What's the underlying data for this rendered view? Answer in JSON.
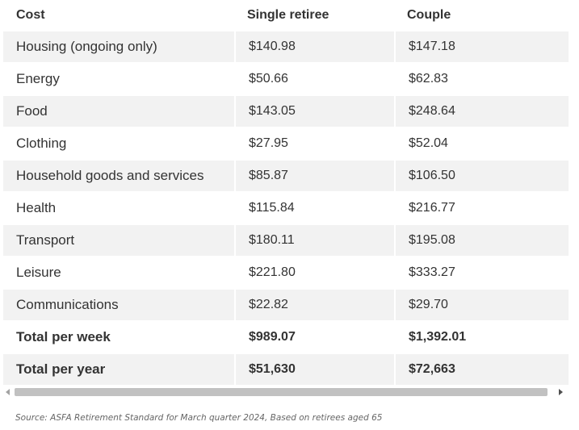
{
  "table": {
    "headers": [
      "Cost",
      "Single retiree",
      "Couple"
    ],
    "rows": [
      {
        "label": "Housing (ongoing only)",
        "single": "$140.98",
        "couple": "$147.18"
      },
      {
        "label": "Energy",
        "single": "$50.66",
        "couple": "$62.83"
      },
      {
        "label": "Food",
        "single": "$143.05",
        "couple": "$248.64"
      },
      {
        "label": "Clothing",
        "single": "$27.95",
        "couple": "$52.04"
      },
      {
        "label": "Household goods and services",
        "single": "$85.87",
        "couple": "$106.50"
      },
      {
        "label": "Health",
        "single": "$115.84",
        "couple": "$216.77"
      },
      {
        "label": "Transport",
        "single": "$180.11",
        "couple": "$195.08"
      },
      {
        "label": "Leisure",
        "single": "$221.80",
        "couple": "$333.27"
      },
      {
        "label": "Communications",
        "single": "$22.82",
        "couple": "$29.70"
      },
      {
        "label": "Total per week",
        "single": "$989.07",
        "couple": "$1,392.01"
      },
      {
        "label": "Total per year",
        "single": "$51,630",
        "couple": "$72,663"
      }
    ]
  },
  "source_note": "Source: ASFA Retirement Standard for March quarter 2024, Based on retirees aged 65",
  "colors": {
    "stripe": "#f2f2f2",
    "text": "#333333",
    "scroll_thumb": "#c1c1c1"
  },
  "icons": {
    "scroll_left": "triangle-left",
    "scroll_right": "triangle-right"
  }
}
